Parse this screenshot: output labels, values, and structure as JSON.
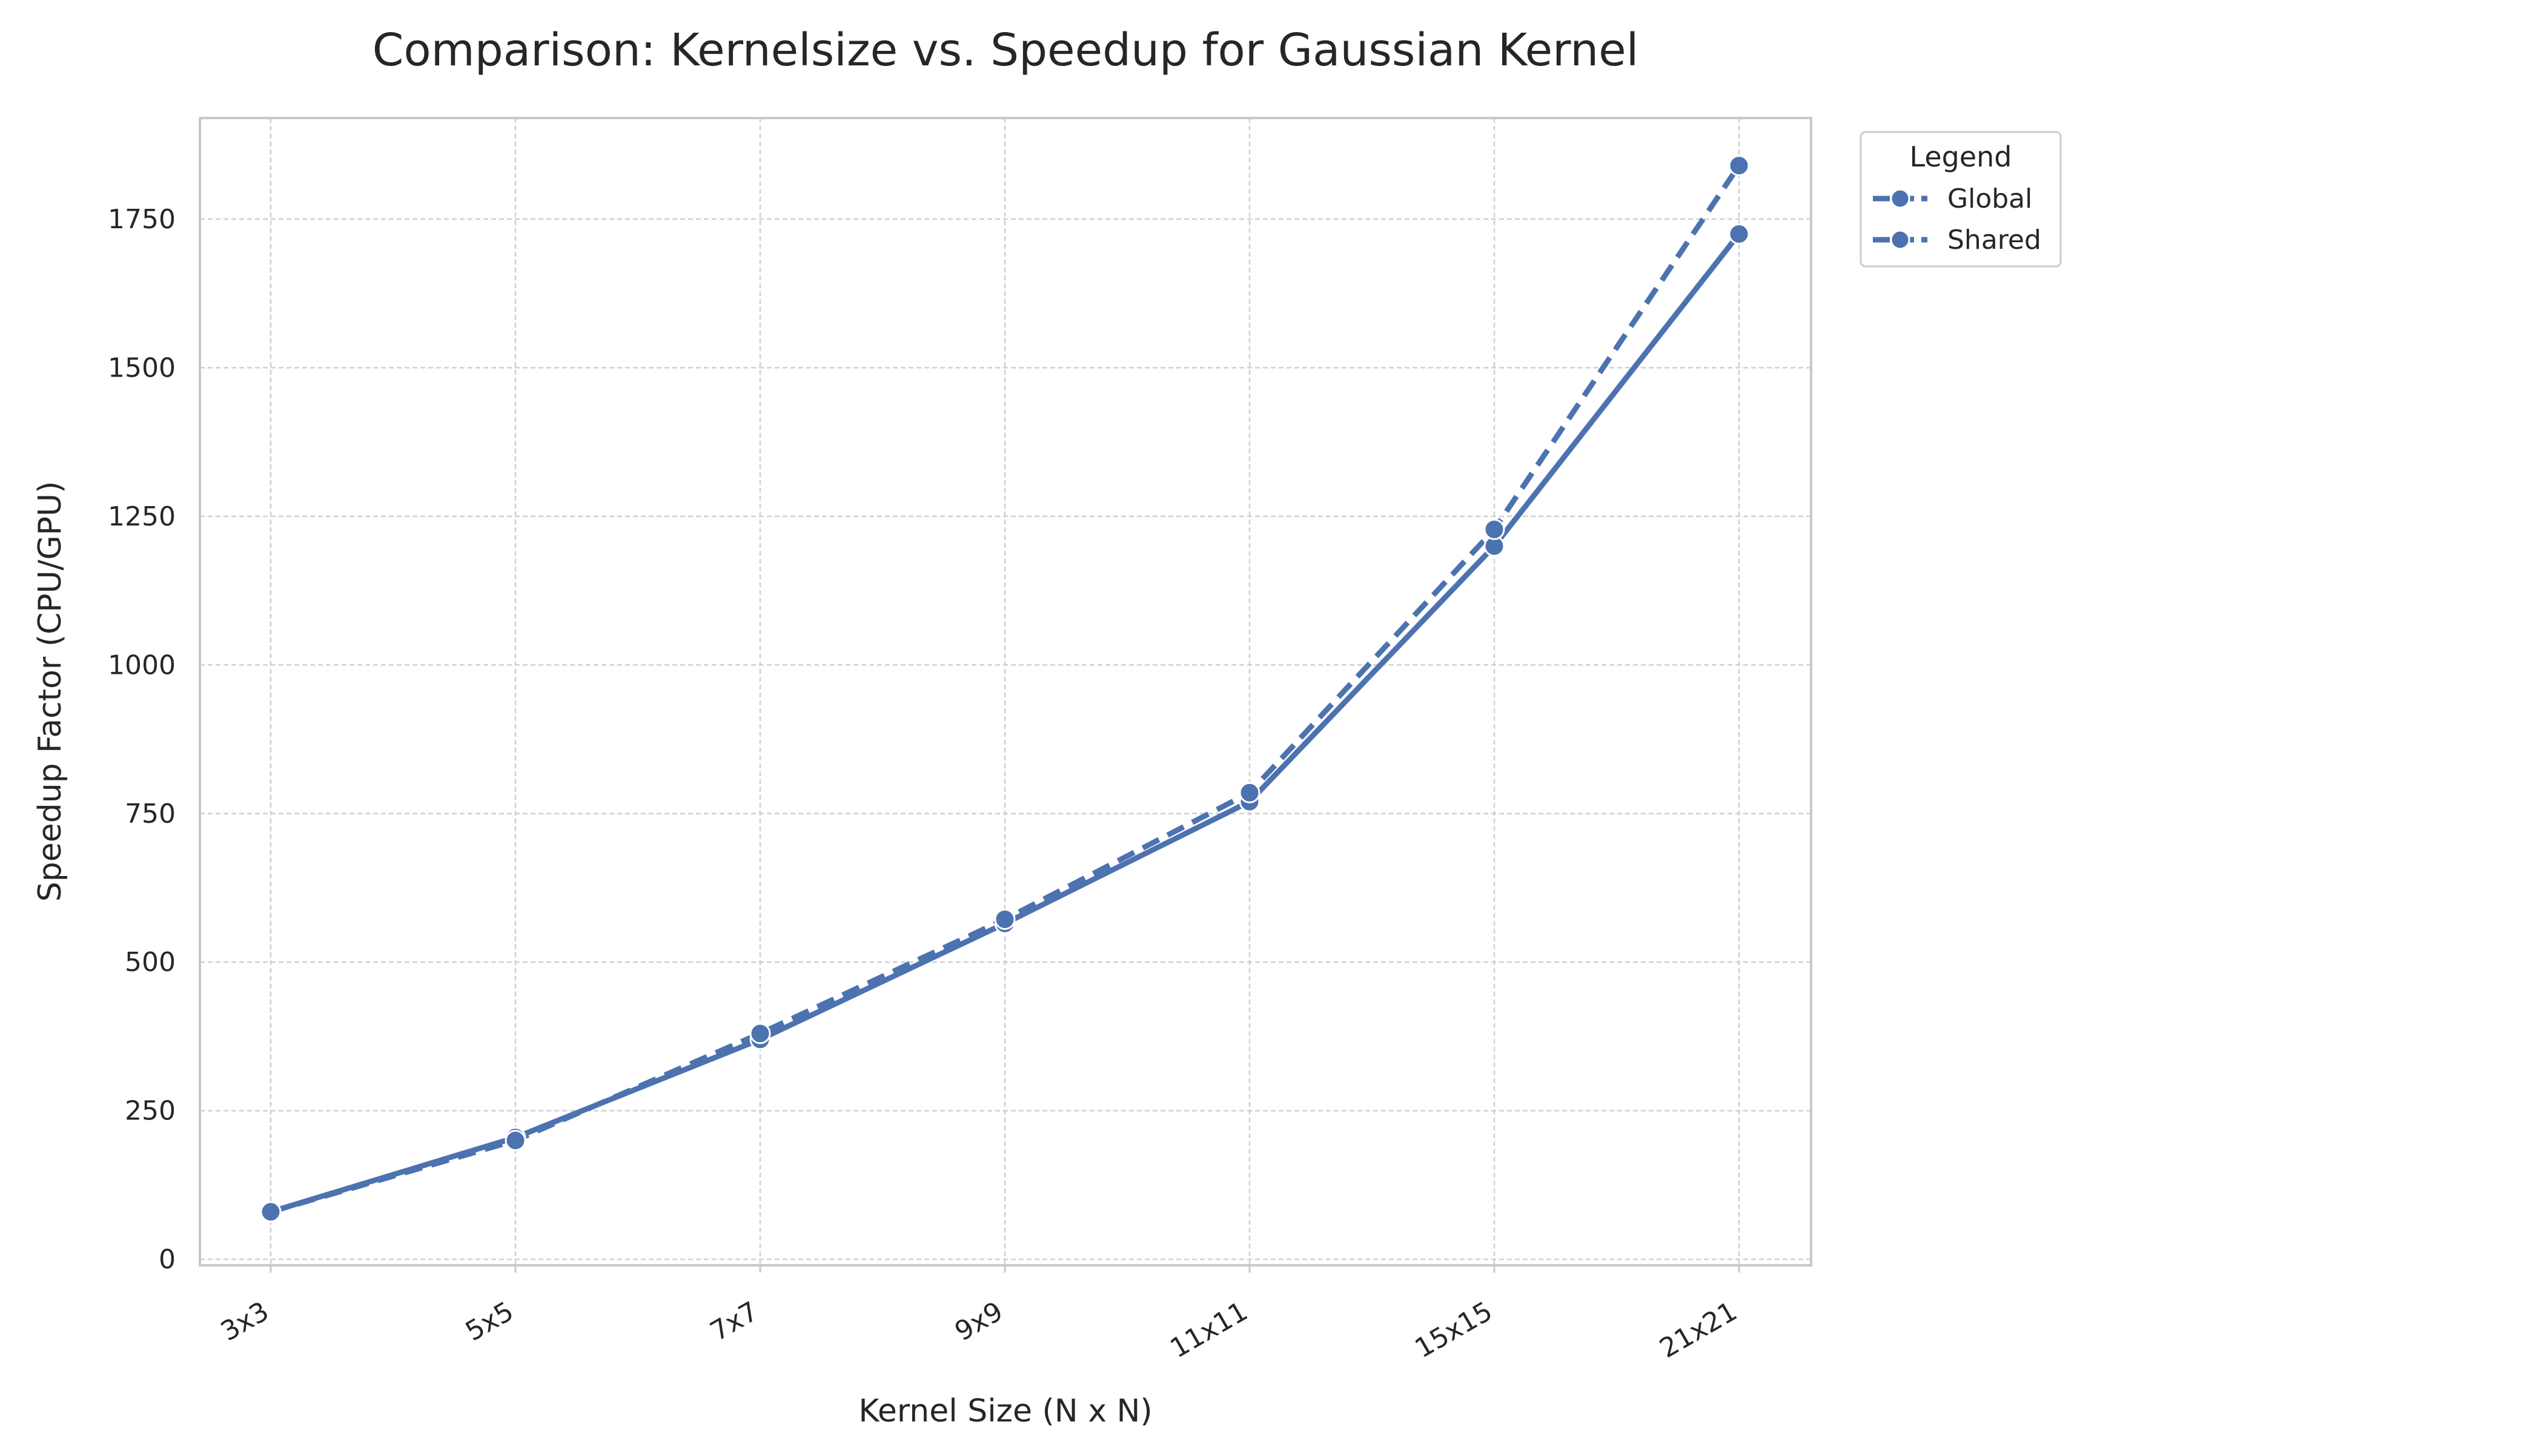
{
  "chart_data": {
    "type": "line",
    "title": "Comparison: Kernelsize vs. Speedup for Gaussian Kernel",
    "xlabel": "Kernel Size (N x N)",
    "ylabel": "Speedup Factor (CPU/GPU)",
    "categories": [
      "3x3",
      "5x5",
      "7x7",
      "9x9",
      "11x11",
      "15x15",
      "21x21"
    ],
    "ylim": [
      -10,
      1920
    ],
    "yticks": [
      0,
      250,
      500,
      750,
      1000,
      1250,
      1500,
      1750
    ],
    "ytick_labels": [
      "0",
      "250",
      "500",
      "750",
      "1000",
      "1250",
      "1500",
      "1750"
    ],
    "grid": true,
    "legend": {
      "title": "Legend",
      "placement": "outside-top-right",
      "entries": [
        "Global",
        "Shared"
      ]
    },
    "series": [
      {
        "name": "Global",
        "values": [
          80,
          205,
          370,
          565,
          770,
          1200,
          1725
        ]
      },
      {
        "name": "Shared",
        "values": [
          80,
          200,
          380,
          572,
          785,
          1228,
          1840
        ]
      }
    ],
    "colors": {
      "series": "#4c72b0",
      "grid": "#d0d0d0",
      "frame": "#c8c8c8",
      "text": "#262626"
    }
  }
}
